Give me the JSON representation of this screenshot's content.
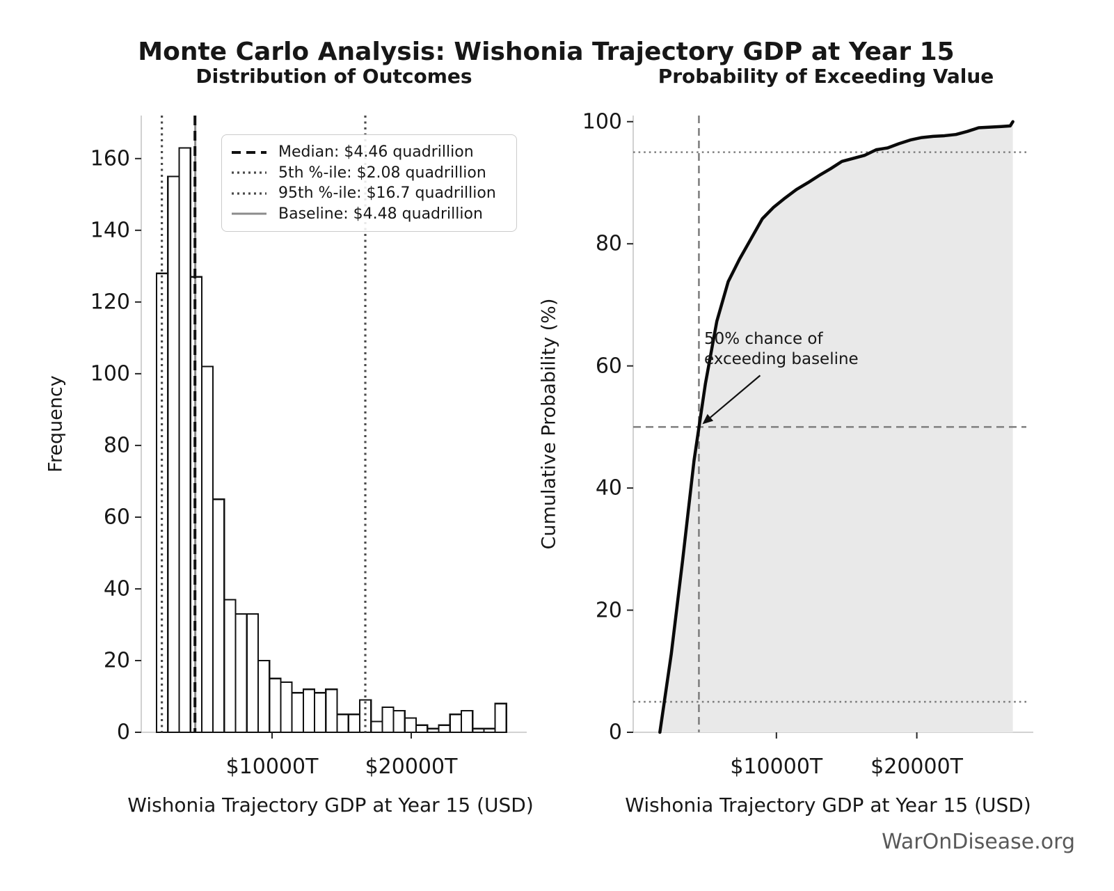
{
  "figure": {
    "title": "Monte Carlo Analysis: Wishonia Trajectory GDP at Year 15",
    "watermark": "WarOnDisease.org",
    "background_color": "#ffffff",
    "styles": {
      "dashed-black": {
        "color": "#111111",
        "dash": "14 8",
        "width": 4
      },
      "dotted-dark": {
        "color": "#4a4a4a",
        "dash": "3 5.5",
        "width": 3.2
      },
      "solid-gray": {
        "color": "#8c8c8c",
        "dash": "",
        "width": 3
      },
      "dashed-gray": {
        "color": "#7f7f7f",
        "dash": "11 7",
        "width": 2.6
      },
      "dotted-gray": {
        "color": "#7f7f7f",
        "dash": "2.6 5",
        "width": 2.6
      }
    }
  },
  "chart_data": [
    {
      "type": "bar",
      "subtype": "histogram",
      "title": "Distribution of Outcomes",
      "xlabel": "Wishonia Trajectory GDP at Year 15 (USD)",
      "ylabel": "Frequency",
      "x_unit": "trillions of USD",
      "bin_start": 1700,
      "bin_width": 811,
      "counts": [
        128,
        155,
        163,
        127,
        102,
        65,
        37,
        33,
        33,
        20,
        15,
        14,
        11,
        12,
        11,
        12,
        5,
        5,
        9,
        3,
        7,
        6,
        4,
        2,
        1,
        2,
        5,
        6,
        1,
        1,
        8
      ],
      "bar_fill": "#ffffff",
      "bar_edge": "#111111",
      "xlim": [
        600,
        27800
      ],
      "ylim": [
        0,
        172
      ],
      "grid": false,
      "xticks": [
        {
          "value": 10000,
          "label": "$10000T"
        },
        {
          "value": 20000,
          "label": "$20000T"
        }
      ],
      "yticks": [
        {
          "value": 0,
          "label": "0"
        },
        {
          "value": 20,
          "label": "20"
        },
        {
          "value": 40,
          "label": "40"
        },
        {
          "value": 60,
          "label": "60"
        },
        {
          "value": 80,
          "label": "80"
        },
        {
          "value": 100,
          "label": "100"
        },
        {
          "value": 120,
          "label": "120"
        },
        {
          "value": 140,
          "label": "140"
        },
        {
          "value": 160,
          "label": "160"
        }
      ],
      "ref_lines": [
        {
          "id": "baseline",
          "value": 4480,
          "style": "solid-gray",
          "label": "Baseline: $4.48 quadrillion"
        },
        {
          "id": "pct5",
          "value": 2080,
          "style": "dotted-dark",
          "label": "5th %-ile: $2.08 quadrillion"
        },
        {
          "id": "pct95",
          "value": 16700,
          "style": "dotted-dark",
          "label": "95th %-ile: $16.7 quadrillion"
        },
        {
          "id": "median",
          "value": 4460,
          "style": "dashed-black",
          "label": "Median: $4.46 quadrillion"
        }
      ],
      "legend": {
        "position": "upper-right",
        "items": [
          {
            "style": "dashed-black",
            "label": "Median: $4.46 quadrillion"
          },
          {
            "style": "dotted-dark",
            "label": "5th %-ile: $2.08 quadrillion"
          },
          {
            "style": "dotted-dark",
            "label": "95th %-ile: $16.7 quadrillion"
          },
          {
            "style": "solid-gray",
            "label": "Baseline: $4.48 quadrillion"
          }
        ]
      }
    },
    {
      "type": "line",
      "subtype": "empirical-cdf",
      "title": "Probability of Exceeding Value",
      "xlabel": "Wishonia Trajectory GDP at Year 15 (USD)",
      "ylabel": "Cumulative Probability (%)",
      "xlim": [
        -200,
        27800
      ],
      "ylim": [
        0,
        101
      ],
      "grid": false,
      "line_color": "#0a0a0a",
      "line_width": 4.5,
      "fill_color": "#e9e9e9",
      "cdf_points": [
        [
          1700,
          0
        ],
        [
          2511,
          12.8
        ],
        [
          3322,
          28.2
        ],
        [
          4133,
          44.5
        ],
        [
          4944,
          57.1
        ],
        [
          5755,
          67.3
        ],
        [
          6566,
          73.8
        ],
        [
          7377,
          77.5
        ],
        [
          8188,
          80.8
        ],
        [
          8999,
          84.1
        ],
        [
          9810,
          86
        ],
        [
          10621,
          87.5
        ],
        [
          11432,
          88.9
        ],
        [
          12243,
          90
        ],
        [
          13054,
          91.2
        ],
        [
          13865,
          92.3
        ],
        [
          14676,
          93.5
        ],
        [
          15487,
          94
        ],
        [
          16298,
          94.5
        ],
        [
          17109,
          95.4
        ],
        [
          17920,
          95.7
        ],
        [
          18731,
          96.4
        ],
        [
          19542,
          97
        ],
        [
          20353,
          97.4
        ],
        [
          21164,
          97.6
        ],
        [
          21975,
          97.7
        ],
        [
          22786,
          97.9
        ],
        [
          23597,
          98.4
        ],
        [
          24408,
          99
        ],
        [
          25219,
          99.1
        ],
        [
          26030,
          99.2
        ],
        [
          26650,
          99.3
        ],
        [
          26841,
          100
        ]
      ],
      "xticks": [
        {
          "value": 10000,
          "label": "$10000T"
        },
        {
          "value": 20000,
          "label": "$20000T"
        }
      ],
      "yticks": [
        {
          "value": 0,
          "label": "0"
        },
        {
          "value": 20,
          "label": "20"
        },
        {
          "value": 40,
          "label": "40"
        },
        {
          "value": 60,
          "label": "60"
        },
        {
          "value": 80,
          "label": "80"
        },
        {
          "value": 100,
          "label": "100"
        }
      ],
      "hlines": [
        {
          "value": 95,
          "style": "dotted-gray"
        },
        {
          "value": 50,
          "style": "dashed-gray"
        },
        {
          "value": 5,
          "style": "dotted-gray"
        }
      ],
      "vlines": [
        {
          "value": 4480,
          "style": "dashed-gray"
        }
      ],
      "annotation": {
        "text": "50% chance of\nexceeding baseline",
        "target": {
          "x": 4480,
          "y": 50
        }
      }
    }
  ]
}
